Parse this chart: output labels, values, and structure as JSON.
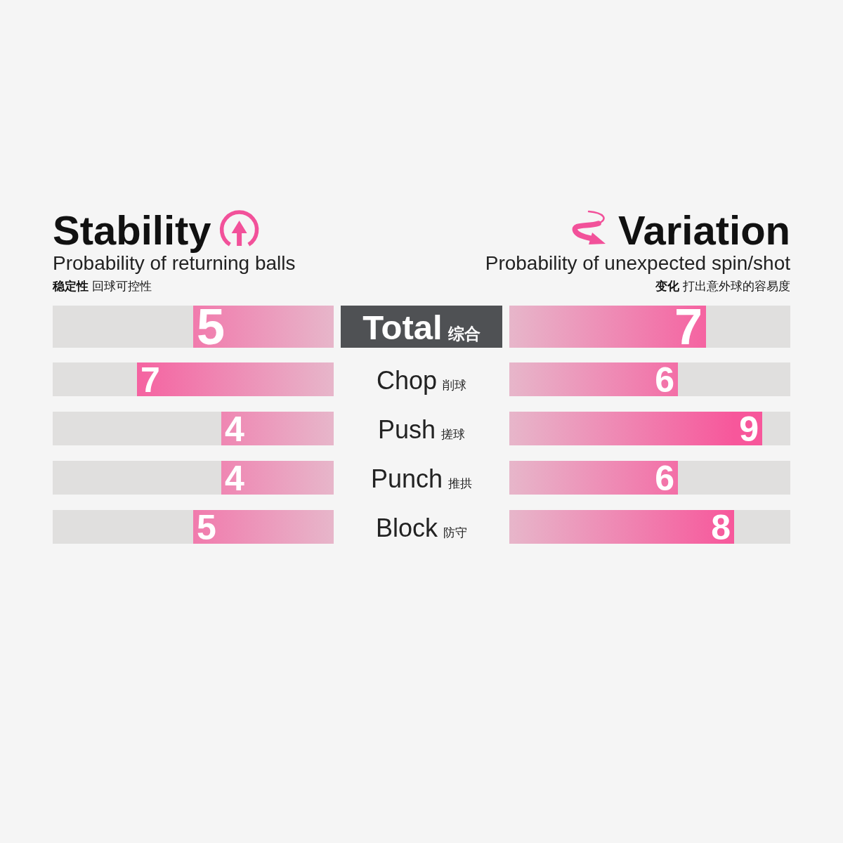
{
  "chart_data": [
    {
      "type": "bar",
      "orientation": "horizontal",
      "title": "Stability",
      "subtitle": "Probability of returning balls",
      "annotations": [
        "稳定性 回球可控性"
      ],
      "categories": [
        "Total 综合",
        "Chop 削球",
        "Push 搓球",
        "Punch 推拱",
        "Block 防守"
      ],
      "series": [
        {
          "color": "#f7579b",
          "values": [
            5,
            7,
            4,
            4,
            5
          ]
        }
      ],
      "xlim": [
        10,
        0
      ],
      "data_labels": true,
      "tick_labels": "y"
    },
    {
      "type": "bar",
      "orientation": "horizontal",
      "title": "Variation",
      "subtitle": "Probability of unexpected spin/shot",
      "annotations": [
        "变化 打出意外球的容易度"
      ],
      "categories": [
        null,
        null,
        null,
        null,
        null
      ],
      "series": [
        {
          "color": "#f7579b",
          "values": [
            7,
            6,
            9,
            6,
            8
          ]
        }
      ],
      "xlim": [
        0,
        10
      ],
      "data_labels": true
    }
  ]
}
